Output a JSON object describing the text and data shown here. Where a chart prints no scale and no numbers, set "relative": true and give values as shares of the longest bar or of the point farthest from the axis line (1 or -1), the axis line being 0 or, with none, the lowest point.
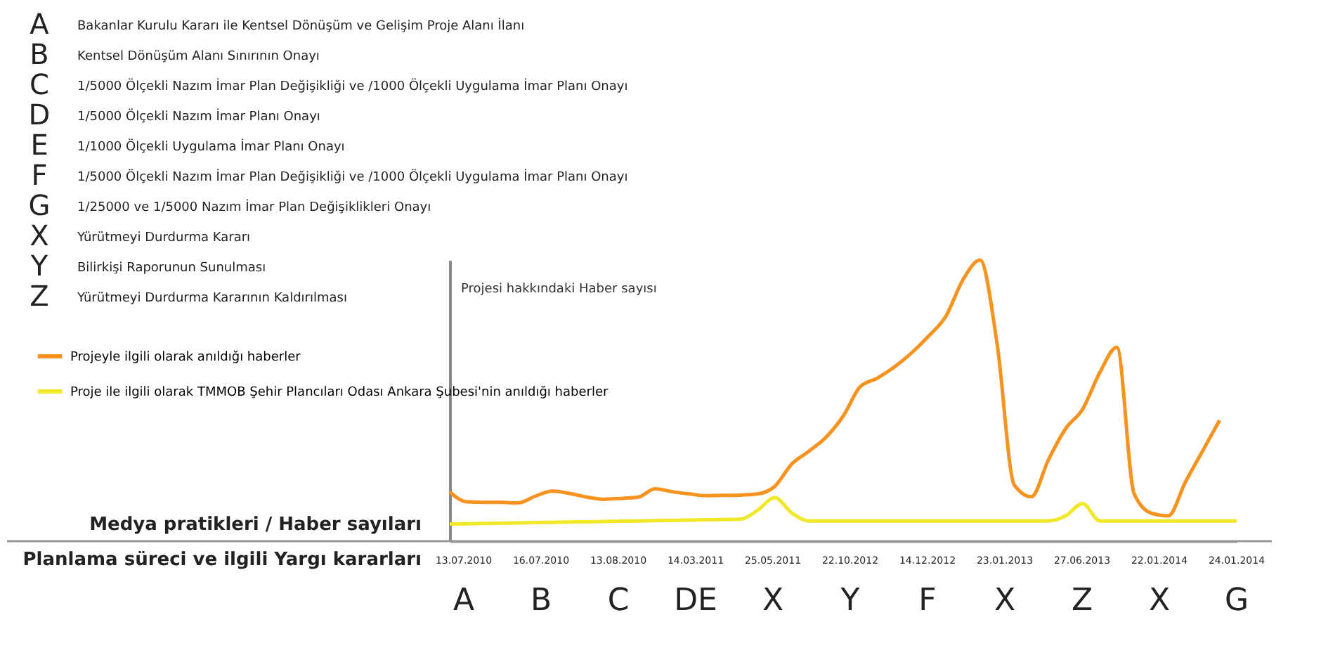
{
  "chart_data": {
    "type": "line",
    "relative": true,
    "legend": "left",
    "ylabel": "Projesi hakkındaki Haber sayısı",
    "categories": [
      null,
      null,
      null,
      null,
      null,
      null,
      null,
      null,
      null,
      null,
      null,
      null,
      null,
      null,
      null,
      null,
      null,
      null,
      null,
      null,
      null,
      null,
      null,
      null,
      null,
      null,
      null,
      null,
      null,
      null,
      null,
      null,
      null,
      null,
      null,
      null,
      null,
      null,
      null,
      null,
      null,
      null,
      null,
      null,
      null,
      null,
      null
    ],
    "series": [
      {
        "name": "Projeyle ilgili olarak anıldığı haberler",
        "color": "#f7931e",
        "values": [
          0.175,
          0.14,
          0.138,
          0.138,
          0.136,
          0.16,
          0.178,
          0.17,
          0.157,
          0.149,
          0.152,
          0.156,
          0.186,
          0.176,
          0.168,
          0.162,
          0.163,
          0.164,
          0.168,
          0.195,
          0.275,
          0.32,
          0.37,
          0.445,
          0.55,
          0.58,
          0.62,
          0.67,
          0.73,
          0.8,
          0.93,
          1,
          0.7,
          0.2,
          0.158,
          0.29,
          0.4,
          0.47,
          0.6,
          0.69,
          0.17,
          0.1,
          0.09,
          0.21,
          0.32,
          0.43,
          null
        ]
      },
      {
        "name": "Proje ile ilgili olarak TMMOB Şehir Plancıları Odası Ankara Şubesi'nin anıldığı haberler",
        "color": "#f2e82a",
        "values": [
          0.061,
          0.062,
          0.063,
          0.064,
          0.065,
          0.066,
          0.067,
          0.068,
          0.069,
          0.07,
          0.071,
          0.072,
          0.073,
          0.074,
          0.075,
          0.076,
          0.077,
          0.078,
          0.11,
          0.155,
          0.1,
          0.072,
          0.072,
          0.072,
          0.072,
          0.072,
          0.072,
          0.072,
          0.072,
          0.072,
          0.072,
          0.072,
          0.072,
          0.072,
          0.072,
          0.072,
          0.09,
          0.134,
          0.072,
          0.072,
          0.072,
          0.072,
          0.072,
          0.072,
          0.072,
          0.072,
          0.072
        ]
      }
    ],
    "annotations": [
      "A",
      "Bakanlar Kurulu Kararı ile Kentsel Dönüşüm ve Gelişim Proje Alanı İlanı",
      "B",
      "Kentsel Dönüşüm Alanı Sınırının Onayı",
      "C",
      "1/5000 Ölçekli Nazım İmar Plan Değişikliği ve /1000 Ölçekli Uygulama İmar Planı Onayı",
      "D",
      "1/5000 Ölçekli Nazım İmar Planı Onayı",
      "E",
      "1/1000 Ölçekli Uygulama İmar Planı Onayı",
      "F",
      "1/5000 Ölçekli Nazım İmar Plan Değişikliği ve /1000 Ölçekli Uygulama İmar Planı Onayı",
      "G",
      "1/25000 ve 1/5000 Nazım İmar Plan Değişiklikleri Onayı",
      "X",
      "Yürütmeyi Durdurma Kararı",
      "Y",
      "Bilirkişi Raporunun Sunulması",
      "Z",
      "Yürütmeyi Durdurma Kararının Kaldırılması",
      "Medya pratikleri / Haber sayıları",
      "Planlama süreci ve ilgili Yargı kararları",
      "13.07.2010",
      "A",
      "16.07.2010",
      "B",
      "13.08.2010",
      "C",
      "14.03.2011",
      "DE",
      "25.05.2011",
      "X",
      "22.10.2012",
      "Y",
      "14.12.2012",
      "F",
      "23.01.2013",
      "X",
      "27.06.2013",
      "Z",
      "22.01.2014",
      "X",
      "24.01.2014",
      "G"
    ]
  }
}
